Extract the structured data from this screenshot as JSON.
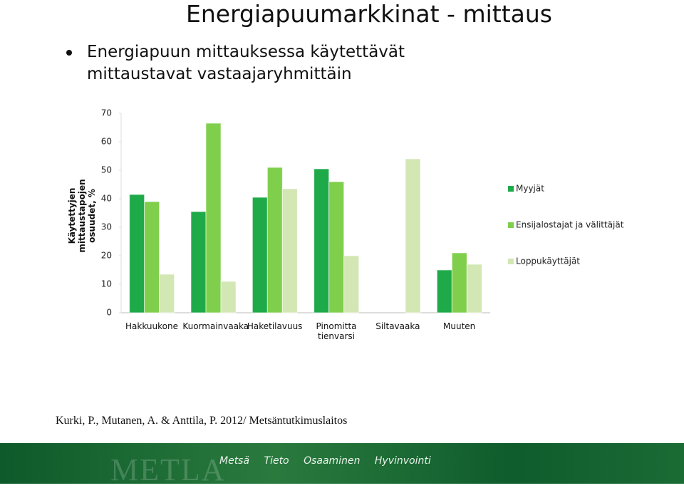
{
  "header": {
    "title": "Energiapuumarkkinat - mittaus"
  },
  "bullet": "Energiapuun mittauksessa käytettävät mittaustavat vastaajaryhmittäin",
  "chart_data": {
    "type": "bar",
    "y_label": "Käytettyjen mittaustapojen osuudet, %",
    "categories": [
      "Hakkuukone",
      "Kuormainvaaka",
      "Haketilavuus",
      "Pinomitta tienvarsi",
      "Siltavaaka",
      "Muuten"
    ],
    "series": [
      {
        "name": "Myyjät",
        "color": "#1faa4a",
        "values": [
          41.5,
          35.5,
          40.5,
          50.5,
          null,
          15
        ]
      },
      {
        "name": "Ensijalostajat ja välittäjät",
        "color": "#80cf4c",
        "values": [
          39,
          66.5,
          51,
          46,
          null,
          21
        ]
      },
      {
        "name": "Loppukäyttäjät",
        "color": "#d2e7b4",
        "values": [
          13.5,
          11,
          43.5,
          20,
          54,
          17
        ]
      }
    ],
    "ylim": [
      0,
      70
    ],
    "yticks": [
      0,
      10,
      20,
      30,
      40,
      50,
      60,
      70
    ],
    "grid": false,
    "legend": "right"
  },
  "citation": "Kurki, P., Mutanen, A. & Anttila, P. 2012/ Metsäntutkimuslaitos",
  "footer": {
    "logo": "METLA",
    "words": [
      "Metsä",
      "Tieto",
      "Osaaminen",
      "Hyvinvointi"
    ]
  }
}
